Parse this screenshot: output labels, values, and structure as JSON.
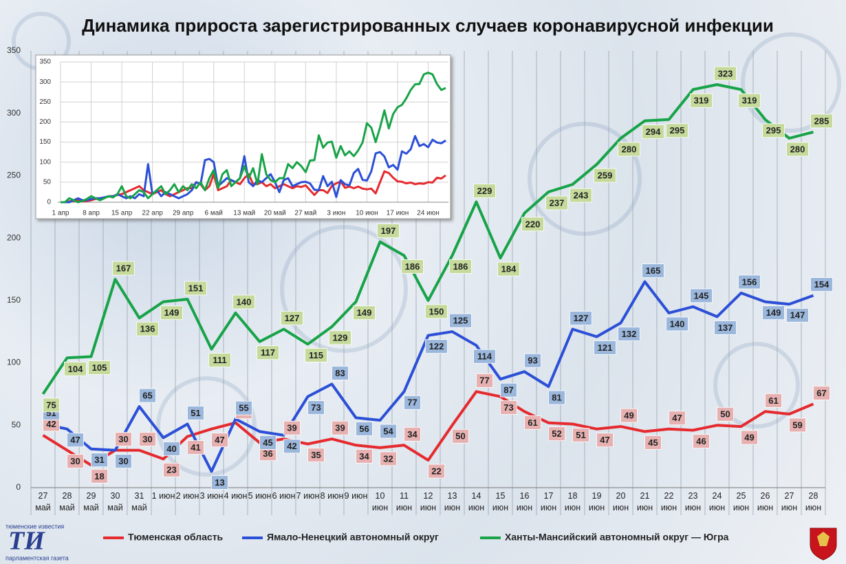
{
  "title": "Динамика прироста зарегистрированных случаев коронавирусной инфекции",
  "logo": {
    "top": "тюменские известия",
    "mark": "ТИ",
    "bottom": "парламентская газета"
  },
  "chart_data": [
    {
      "type": "line",
      "categories": [
        "27 май",
        "28 май",
        "29 май",
        "30 май",
        "31 май",
        "1 июн",
        "2 июн",
        "3 июн",
        "4 июн",
        "5 июн",
        "6 июн",
        "7 июн",
        "8 июн",
        "9 июн",
        "10 июн",
        "11 июн",
        "12 июн",
        "13 июн",
        "14 июн",
        "15 июн",
        "16 июн",
        "17 июн",
        "18 июн",
        "19 июн",
        "20 июн",
        "21 июн",
        "22 июн",
        "23 июн",
        "24 июн",
        "25 июн",
        "26 июн",
        "27 июн",
        "28 июн"
      ],
      "ylim": [
        0,
        350
      ],
      "yticks": [
        0,
        50,
        100,
        150,
        200,
        250,
        300,
        350
      ],
      "xgrid": true,
      "ygrid": false,
      "data_labels": true,
      "legend": "bottom",
      "series": [
        {
          "name": "Тюменская область",
          "color": "#e52a2e",
          "label_color": "#e6b1b0",
          "values": [
            42,
            30,
            18,
            30,
            30,
            23,
            41,
            47,
            52,
            36,
            39,
            35,
            39,
            34,
            32,
            34,
            22,
            50,
            77,
            73,
            61,
            52,
            51,
            47,
            49,
            45,
            47,
            46,
            50,
            49,
            61,
            59,
            67
          ]
        },
        {
          "name": "Ямало-Ненецкий автономный округ",
          "color": "#2b4fd6",
          "label_color": "#9bb7dc",
          "values": [
            51,
            47,
            31,
            30,
            65,
            40,
            51,
            13,
            55,
            45,
            42,
            73,
            83,
            56,
            54,
            77,
            122,
            125,
            114,
            87,
            93,
            81,
            127,
            121,
            132,
            165,
            140,
            145,
            137,
            156,
            149,
            147,
            154
          ]
        },
        {
          "name": "Ханты-Мансийский автономный округ — Югра",
          "color": "#17a348",
          "label_color": "#c6da9c",
          "values": [
            75,
            104,
            105,
            167,
            136,
            149,
            151,
            111,
            140,
            117,
            127,
            115,
            129,
            149,
            197,
            186,
            150,
            186,
            229,
            184,
            220,
            237,
            243,
            259,
            280,
            294,
            295,
            319,
            323,
            319,
            295,
            280,
            285
          ]
        }
      ]
    },
    {
      "type": "line",
      "categories": [
        "1 апр",
        null,
        null,
        null,
        null,
        null,
        null,
        "8 апр",
        null,
        null,
        null,
        null,
        null,
        null,
        "15 апр",
        null,
        null,
        null,
        null,
        null,
        null,
        "22 апр",
        null,
        null,
        null,
        null,
        null,
        null,
        "29 апр",
        null,
        null,
        null,
        null,
        null,
        null,
        "6 май",
        null,
        null,
        null,
        null,
        null,
        null,
        "13 май",
        null,
        null,
        null,
        null,
        null,
        null,
        "20 май",
        null,
        null,
        null,
        null,
        null,
        null,
        "27 май",
        null,
        null,
        null,
        null,
        null,
        null,
        "3 июн",
        null,
        null,
        null,
        null,
        null,
        null,
        "10 июн",
        null,
        null,
        null,
        null,
        null,
        null,
        "17 июн",
        null,
        null,
        null,
        null,
        null,
        null,
        "24 июн",
        null,
        null,
        null,
        null
      ],
      "ylim": [
        0,
        350
      ],
      "yticks": [
        0,
        50,
        100,
        150,
        200,
        250,
        300,
        350
      ],
      "xgrid": true,
      "ygrid": true,
      "data_labels": false,
      "series": [
        {
          "color": "#e52a2e",
          "values": [
            0,
            0,
            2,
            3,
            5,
            2,
            3,
            5,
            8,
            10,
            12,
            14,
            15,
            18,
            20,
            25,
            30,
            35,
            40,
            30,
            25,
            20,
            25,
            30,
            20,
            15,
            20,
            25,
            30,
            35,
            35,
            50,
            45,
            30,
            40,
            70,
            30,
            35,
            40,
            55,
            50,
            45,
            60,
            70,
            45,
            45,
            50,
            40,
            45,
            35,
            40,
            45,
            40,
            35,
            40,
            38,
            42,
            30,
            18,
            30,
            30,
            23,
            41,
            47,
            52,
            36,
            39,
            35,
            39,
            34,
            32,
            34,
            22,
            50,
            77,
            73,
            61,
            52,
            51,
            47,
            49,
            45,
            47,
            46,
            50,
            49,
            61,
            59,
            67
          ]
        },
        {
          "color": "#2b4fd6",
          "values": [
            0,
            0,
            0,
            5,
            10,
            5,
            5,
            8,
            10,
            10,
            12,
            15,
            15,
            20,
            15,
            10,
            15,
            10,
            20,
            15,
            95,
            20,
            30,
            15,
            25,
            20,
            15,
            10,
            15,
            20,
            30,
            50,
            45,
            105,
            108,
            100,
            40,
            50,
            60,
            55,
            50,
            60,
            115,
            50,
            40,
            55,
            50,
            60,
            70,
            50,
            25,
            55,
            60,
            40,
            45,
            50,
            51,
            47,
            31,
            30,
            65,
            40,
            51,
            13,
            55,
            45,
            42,
            73,
            83,
            56,
            54,
            77,
            122,
            125,
            114,
            87,
            93,
            81,
            127,
            121,
            132,
            165,
            140,
            145,
            137,
            156,
            149,
            147,
            154
          ]
        },
        {
          "color": "#17a348",
          "values": [
            0,
            0,
            10,
            5,
            0,
            3,
            8,
            15,
            10,
            5,
            10,
            15,
            12,
            20,
            40,
            15,
            10,
            20,
            30,
            25,
            10,
            20,
            30,
            40,
            20,
            30,
            45,
            25,
            40,
            30,
            45,
            35,
            50,
            30,
            60,
            80,
            35,
            70,
            80,
            40,
            50,
            60,
            90,
            60,
            85,
            45,
            120,
            70,
            55,
            50,
            60,
            60,
            95,
            85,
            100,
            90,
            75,
            104,
            105,
            167,
            136,
            149,
            151,
            111,
            140,
            117,
            127,
            115,
            129,
            149,
            197,
            186,
            150,
            186,
            229,
            184,
            220,
            237,
            243,
            259,
            280,
            294,
            295,
            319,
            323,
            319,
            295,
            280,
            285
          ]
        }
      ]
    }
  ]
}
